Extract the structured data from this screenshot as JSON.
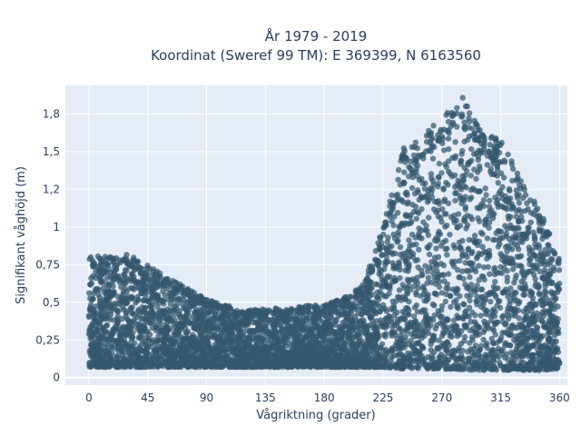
{
  "chart_data": {
    "type": "scatter",
    "title_line1": "År 1979 - 2019",
    "title_line2": "Koordinat (Sweref 99 TM): E 369399, N 6163560",
    "xlabel": "Vågriktning (grader)",
    "ylabel": "Signifikant våghöjd (m)",
    "xlim": [
      -18,
      366
    ],
    "ylim": [
      -0.05,
      1.94
    ],
    "x_ticks": [
      0,
      45,
      90,
      135,
      180,
      225,
      270,
      315,
      360
    ],
    "x_tick_labels": [
      "0",
      "45",
      "90",
      "135",
      "180",
      "225",
      "270",
      "315",
      "360"
    ],
    "y_ticks": [
      0,
      0.25,
      0.5,
      0.75,
      1,
      1.25,
      1.5,
      1.75
    ],
    "y_tick_labels": [
      "0",
      "0,25",
      "0,5",
      "0,75",
      "1",
      "1,2",
      "1,5",
      "1,8"
    ],
    "grid": true,
    "series": [
      {
        "color": "#34586e",
        "envelope": {
          "direction": [
            0,
            15,
            30,
            45,
            60,
            75,
            90,
            105,
            120,
            135,
            150,
            165,
            180,
            195,
            210,
            225,
            240,
            255,
            270,
            285,
            300,
            315,
            330,
            345,
            360
          ],
          "max_height": [
            0.82,
            0.8,
            0.82,
            0.75,
            0.66,
            0.6,
            0.52,
            0.48,
            0.44,
            0.47,
            0.45,
            0.48,
            0.48,
            0.53,
            0.62,
            1.0,
            1.52,
            1.6,
            1.73,
            1.88,
            1.65,
            1.58,
            1.33,
            1.12,
            0.78
          ],
          "min_height": [
            0.07,
            0.07,
            0.07,
            0.07,
            0.07,
            0.07,
            0.07,
            0.07,
            0.07,
            0.07,
            0.07,
            0.07,
            0.07,
            0.07,
            0.07,
            0.07,
            0.06,
            0.06,
            0.06,
            0.05,
            0.05,
            0.05,
            0.05,
            0.05,
            0.06
          ]
        }
      }
    ]
  }
}
